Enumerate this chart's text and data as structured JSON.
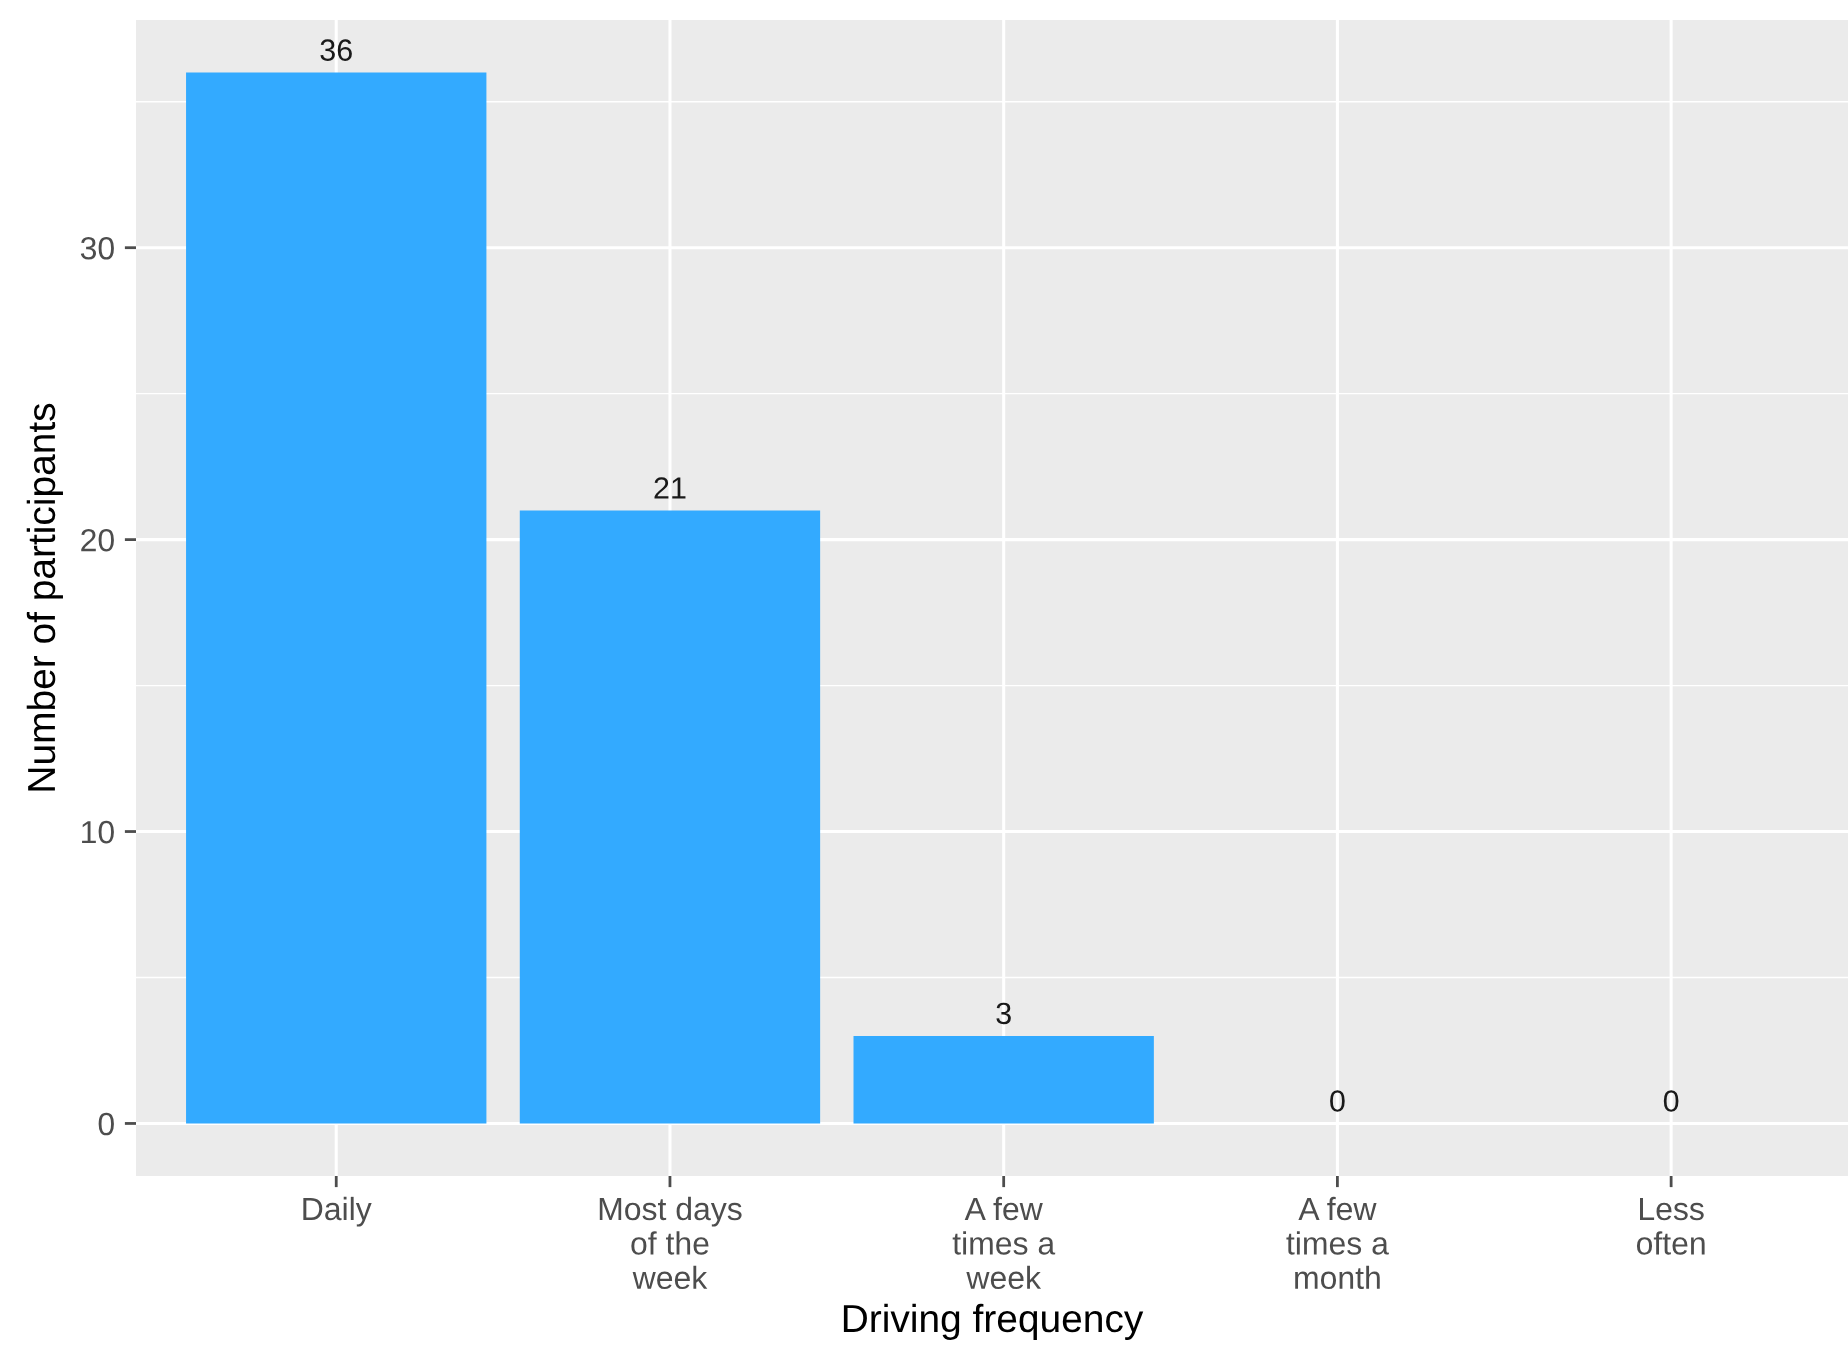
{
  "chart_data": {
    "type": "bar",
    "xlabel": "Driving frequency",
    "ylabel": "Number of participants",
    "categories": [
      "Daily",
      "Most days\nof the\nweek",
      "A few\ntimes a\nweek",
      "A few\ntimes a\nmonth",
      "Less\noften"
    ],
    "values": [
      36,
      21,
      3,
      0,
      0
    ],
    "color": "#33aaff",
    "ylim": [
      -1.8,
      37.8
    ],
    "yticks": [
      0,
      10,
      20,
      30
    ],
    "grid": true,
    "data_labels": true
  }
}
